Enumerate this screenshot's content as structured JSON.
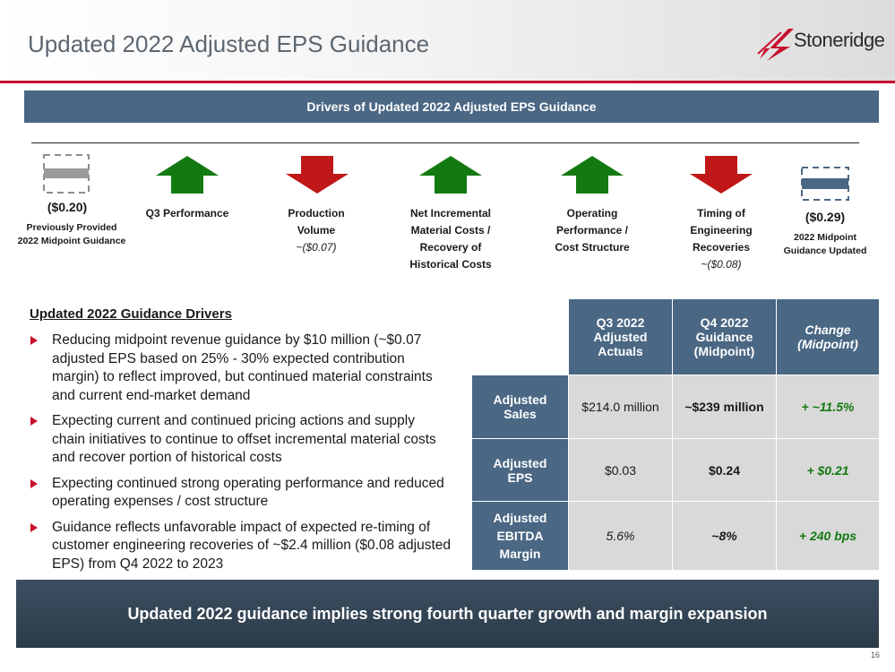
{
  "header": {
    "title": "Updated 2022 Adjusted EPS Guidance",
    "logo_text": "Stoneridge"
  },
  "banner": {
    "text": "Drivers of Updated 2022 Adjusted EPS Guidance"
  },
  "bridge": {
    "start_value": "($0.20)",
    "start_label_1": "Previously Provided",
    "start_label_2": "2022 Midpoint Guidance",
    "end_value": "($0.29)",
    "end_label_1": "2022 Midpoint",
    "end_label_2": "Guidance Updated",
    "drivers": [
      {
        "lines": [
          "Q3 Performance"
        ],
        "sub": "",
        "direction": "up"
      },
      {
        "lines": [
          "Production",
          "Volume"
        ],
        "sub": "~($0.07)",
        "direction": "down"
      },
      {
        "lines": [
          "Net Incremental",
          "Material Costs /",
          "Recovery of",
          "Historical Costs"
        ],
        "sub": "",
        "direction": "up"
      },
      {
        "lines": [
          "Operating",
          "Performance /",
          "Cost Structure"
        ],
        "sub": "",
        "direction": "up"
      },
      {
        "lines": [
          "Timing of",
          "Engineering",
          "Recoveries"
        ],
        "sub": "~($0.08)",
        "direction": "down"
      }
    ]
  },
  "drivers_section": {
    "title": "Updated 2022 Guidance Drivers",
    "bullets": [
      "Reducing midpoint revenue guidance by $10 million (~$0.07 adjusted EPS based on 25% - 30% expected contribution margin) to reflect improved, but continued material constraints and current end-market demand",
      "Expecting current and continued pricing actions and supply chain initiatives to continue to offset incremental material costs and recover portion of historical costs",
      "Expecting continued strong operating performance and reduced operating expenses / cost structure",
      "Guidance reflects unfavorable impact of expected re-timing of customer engineering recoveries of ~$2.4 million ($0.08 adjusted EPS) from Q4 2022 to 2023"
    ]
  },
  "table": {
    "columns": [
      [
        "Q3 2022",
        "Adjusted",
        "Actuals"
      ],
      [
        "Q4 2022",
        "Guidance",
        "(Midpoint)"
      ],
      [
        "Change",
        "(Midpoint)"
      ]
    ],
    "rows": [
      {
        "label": [
          "Adjusted",
          "Sales"
        ],
        "q3": "$214.0 million",
        "q4": "~$239 million",
        "change": "+ ~11.5%"
      },
      {
        "label": [
          "Adjusted",
          "EPS"
        ],
        "q3": "$0.03",
        "q4": "$0.24",
        "change": "+ $0.21"
      },
      {
        "label": [
          "Adjusted",
          "EBITDA",
          "Margin"
        ],
        "q3": "5.6%",
        "q4": "~8%",
        "change": "+ 240 bps"
      }
    ]
  },
  "footer": {
    "text": "Updated 2022 guidance implies strong fourth quarter growth and margin expansion"
  },
  "page_number": "16",
  "colors": {
    "accent_red": "#c8102e",
    "header_blue": "#4a6784",
    "up_green": "#137a12",
    "down_red": "#c01818"
  }
}
